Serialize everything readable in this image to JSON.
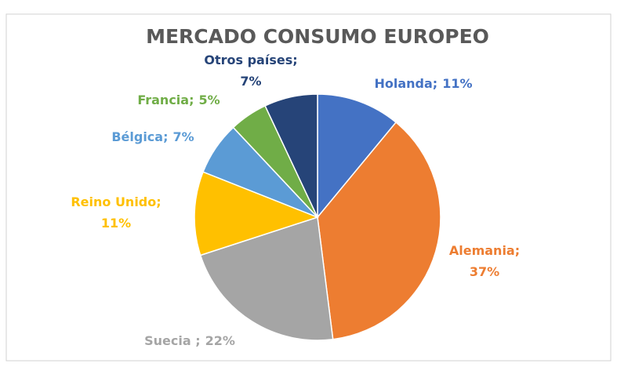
{
  "chart_data": {
    "type": "pie",
    "title": "MERCADO CONSUMO EUROPEO",
    "categories": [
      "Holanda;",
      "Alemania;",
      "Suecia ;",
      "Reino Unido;",
      "Bélgica;",
      "Francia;",
      "Otros países;"
    ],
    "values": [
      11,
      37,
      22,
      11,
      7,
      5,
      7
    ],
    "value_labels": [
      "11%",
      "37%",
      "22%",
      "11%",
      "7%",
      "5%",
      "7%"
    ],
    "colors": [
      "#4472c4",
      "#ed7d31",
      "#a5a5a5",
      "#ffc000",
      "#5b9bd5",
      "#70ad47",
      "#264478"
    ]
  }
}
